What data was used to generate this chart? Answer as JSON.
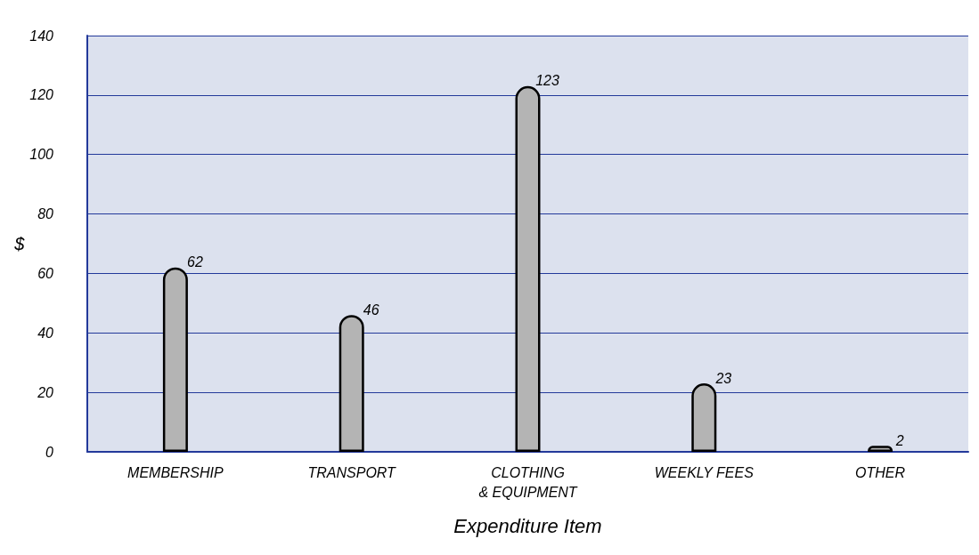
{
  "chart_data": {
    "type": "bar",
    "xlabel": "Expenditure Item",
    "ylabel": "$",
    "categories": [
      "MEMBERSHIP",
      "TRANSPORT",
      "CLOTHING\n& EQUIPMENT",
      "WEEKLY FEES",
      "OTHER"
    ],
    "values": [
      62,
      46,
      123,
      23,
      2
    ],
    "color": "#b4b4b4",
    "ylim": [
      0,
      140
    ],
    "yticks": [
      0,
      20,
      40,
      60,
      80,
      100,
      120,
      140
    ],
    "grid": "y",
    "data_labels": true
  }
}
